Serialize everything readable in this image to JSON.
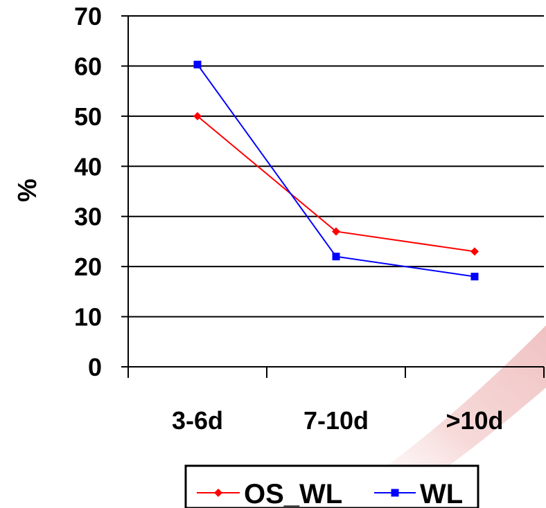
{
  "chart_data": {
    "type": "line",
    "categories": [
      "3-6d",
      "7-10d",
      ">10d"
    ],
    "series": [
      {
        "name": "OS_WL",
        "values": [
          50,
          27,
          23
        ],
        "color": "#ff0000",
        "marker": "diamond"
      },
      {
        "name": "WL",
        "values": [
          60.3,
          22,
          18
        ],
        "color": "#0000ff",
        "marker": "square"
      }
    ],
    "ylabel": "%",
    "ylim": [
      0,
      70
    ],
    "yticks": [
      0,
      10,
      20,
      30,
      40,
      50,
      60,
      70
    ],
    "grid": true,
    "legend_position": "bottom"
  }
}
